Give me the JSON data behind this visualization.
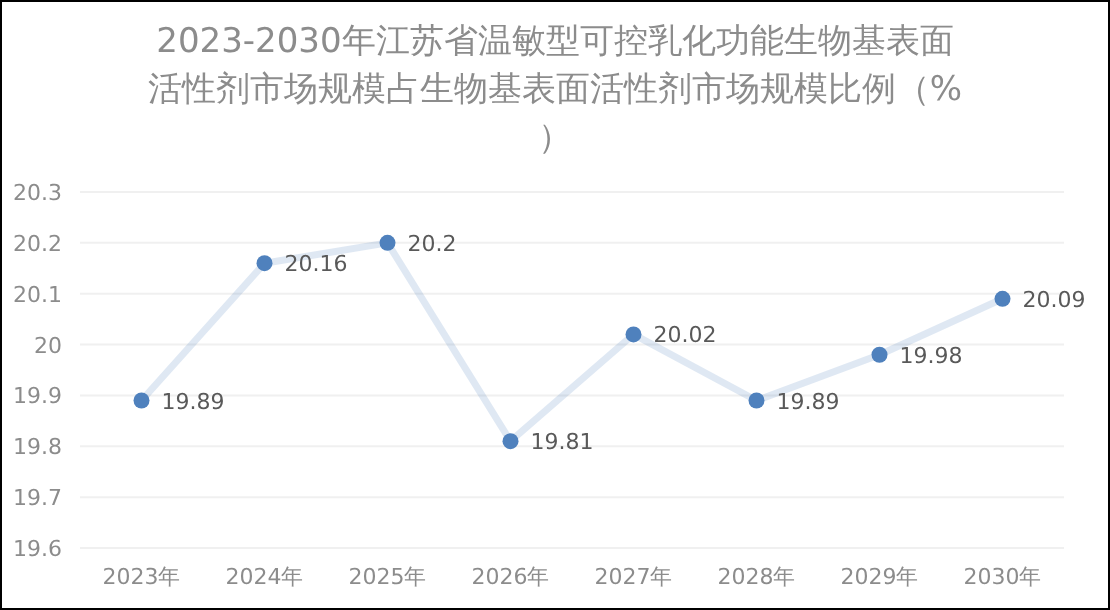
{
  "chart_data": {
    "type": "line",
    "title": "2023-2030年江苏省温敏型可控乳化功能生物基表面活性剂市场规模占生物基表面活性剂市场规模比例（%）",
    "categories": [
      "2023年",
      "2024年",
      "2025年",
      "2026年",
      "2027年",
      "2028年",
      "2029年",
      "2030年"
    ],
    "series": [
      {
        "color": "#4f81bd",
        "values": [
          19.89,
          20.16,
          20.2,
          19.81,
          20.02,
          19.89,
          19.98,
          20.09
        ]
      }
    ],
    "ylim": [
      19.6,
      20.3
    ],
    "yticks": [
      19.6,
      19.7,
      19.8,
      19.9,
      20,
      20.1,
      20.2,
      20.3
    ],
    "grid": "y",
    "marker": "circle",
    "line_style": "solid",
    "data_labels": true
  }
}
